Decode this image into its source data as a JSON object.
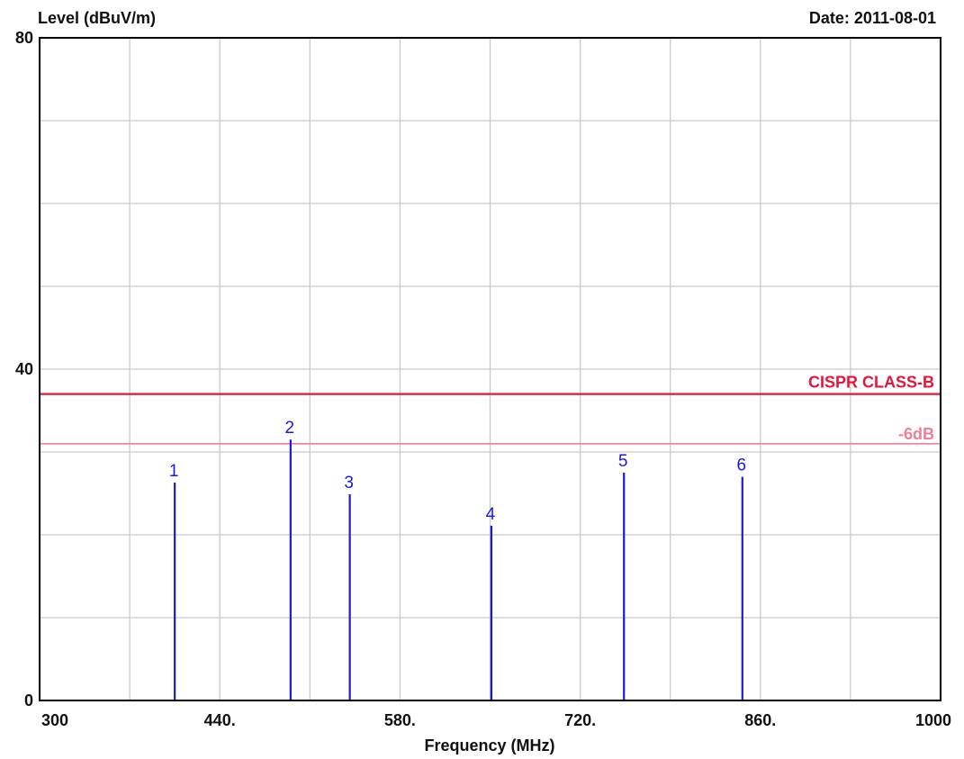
{
  "chart_data": {
    "type": "bar",
    "ylabel": "Level (dBuV/m)",
    "xlabel": "Frequency (MHz)",
    "date_label": "Date: 2011-08-01",
    "xlim": [
      300,
      1000
    ],
    "ylim": [
      0,
      80
    ],
    "x_ticks": [
      300,
      440,
      580,
      720,
      860,
      1000
    ],
    "x_tick_labels": [
      "300",
      "440.",
      "580.",
      "720.",
      "860.",
      "1000"
    ],
    "y_ticks": [
      0,
      40,
      80
    ],
    "y_tick_labels": [
      "0",
      "40",
      "80"
    ],
    "grid": true,
    "colors": {
      "markers": "#1a1ad6",
      "limit": "#e5163a",
      "margin": "#ee7f96",
      "grid": "#c9c9c9",
      "axes": "#000000"
    },
    "markers": [
      {
        "label": "1",
        "x": 405,
        "y": 26.3
      },
      {
        "label": "2",
        "x": 495,
        "y": 31.5
      },
      {
        "label": "3",
        "x": 541,
        "y": 24.9
      },
      {
        "label": "4",
        "x": 651,
        "y": 21.1
      },
      {
        "label": "5",
        "x": 754,
        "y": 27.5
      },
      {
        "label": "6",
        "x": 846,
        "y": 27.0
      }
    ],
    "limit_lines": [
      {
        "label": "CISPR CLASS-B",
        "y": 37.0
      },
      {
        "label": "-6dB",
        "y": 31.0
      }
    ]
  }
}
